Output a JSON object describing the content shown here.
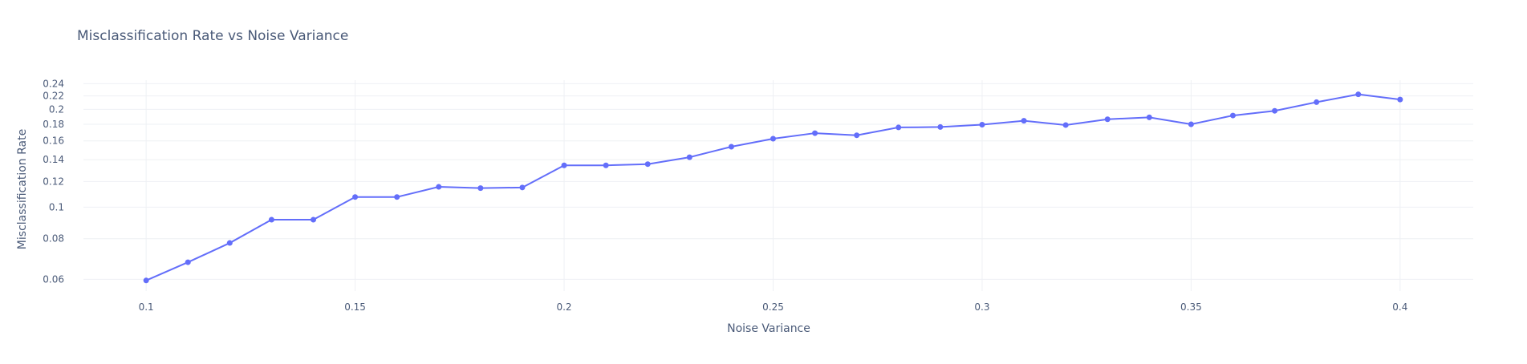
{
  "chart_data": {
    "type": "line",
    "title": "Misclassification Rate vs Noise Variance",
    "xlabel": "Noise Variance",
    "ylabel": "Misclassification Rate",
    "yscale": "log",
    "xlim": [
      0.085,
      0.4175
    ],
    "ylim": [
      0.0552,
      0.246
    ],
    "grid": true,
    "x_ticks": [
      0.1,
      0.15,
      0.2,
      0.25,
      0.3,
      0.35,
      0.4
    ],
    "x_tick_labels": [
      "0.1",
      "0.15",
      "0.2",
      "0.25",
      "0.3",
      "0.35",
      "0.4"
    ],
    "y_ticks": [
      0.06,
      0.08,
      0.1,
      0.12,
      0.14,
      0.16,
      0.18,
      0.2,
      0.22,
      0.24
    ],
    "y_tick_labels": [
      "0.06",
      "0.08",
      "0.1",
      "0.12",
      "0.14",
      "0.16",
      "0.18",
      "0.2",
      "0.22",
      "0.24"
    ],
    "series": [
      {
        "name": "Misclassification Rate",
        "color": "#636efa",
        "x": [
          0.1,
          0.11,
          0.12,
          0.13,
          0.14,
          0.15,
          0.16,
          0.17,
          0.18,
          0.19,
          0.2,
          0.21,
          0.22,
          0.23,
          0.24,
          0.25,
          0.26,
          0.27,
          0.28,
          0.29,
          0.3,
          0.31,
          0.32,
          0.33,
          0.34,
          0.35,
          0.36,
          0.37,
          0.38,
          0.39,
          0.4
        ],
        "y": [
          0.0595,
          0.0677,
          0.0776,
          0.0915,
          0.0915,
          0.1075,
          0.1075,
          0.1155,
          0.1145,
          0.115,
          0.1345,
          0.1345,
          0.1357,
          0.1425,
          0.1535,
          0.1625,
          0.169,
          0.1665,
          0.176,
          0.1765,
          0.1795,
          0.1845,
          0.179,
          0.1865,
          0.189,
          0.18,
          0.1915,
          0.198,
          0.2105,
          0.2225,
          0.2145
        ]
      }
    ]
  }
}
